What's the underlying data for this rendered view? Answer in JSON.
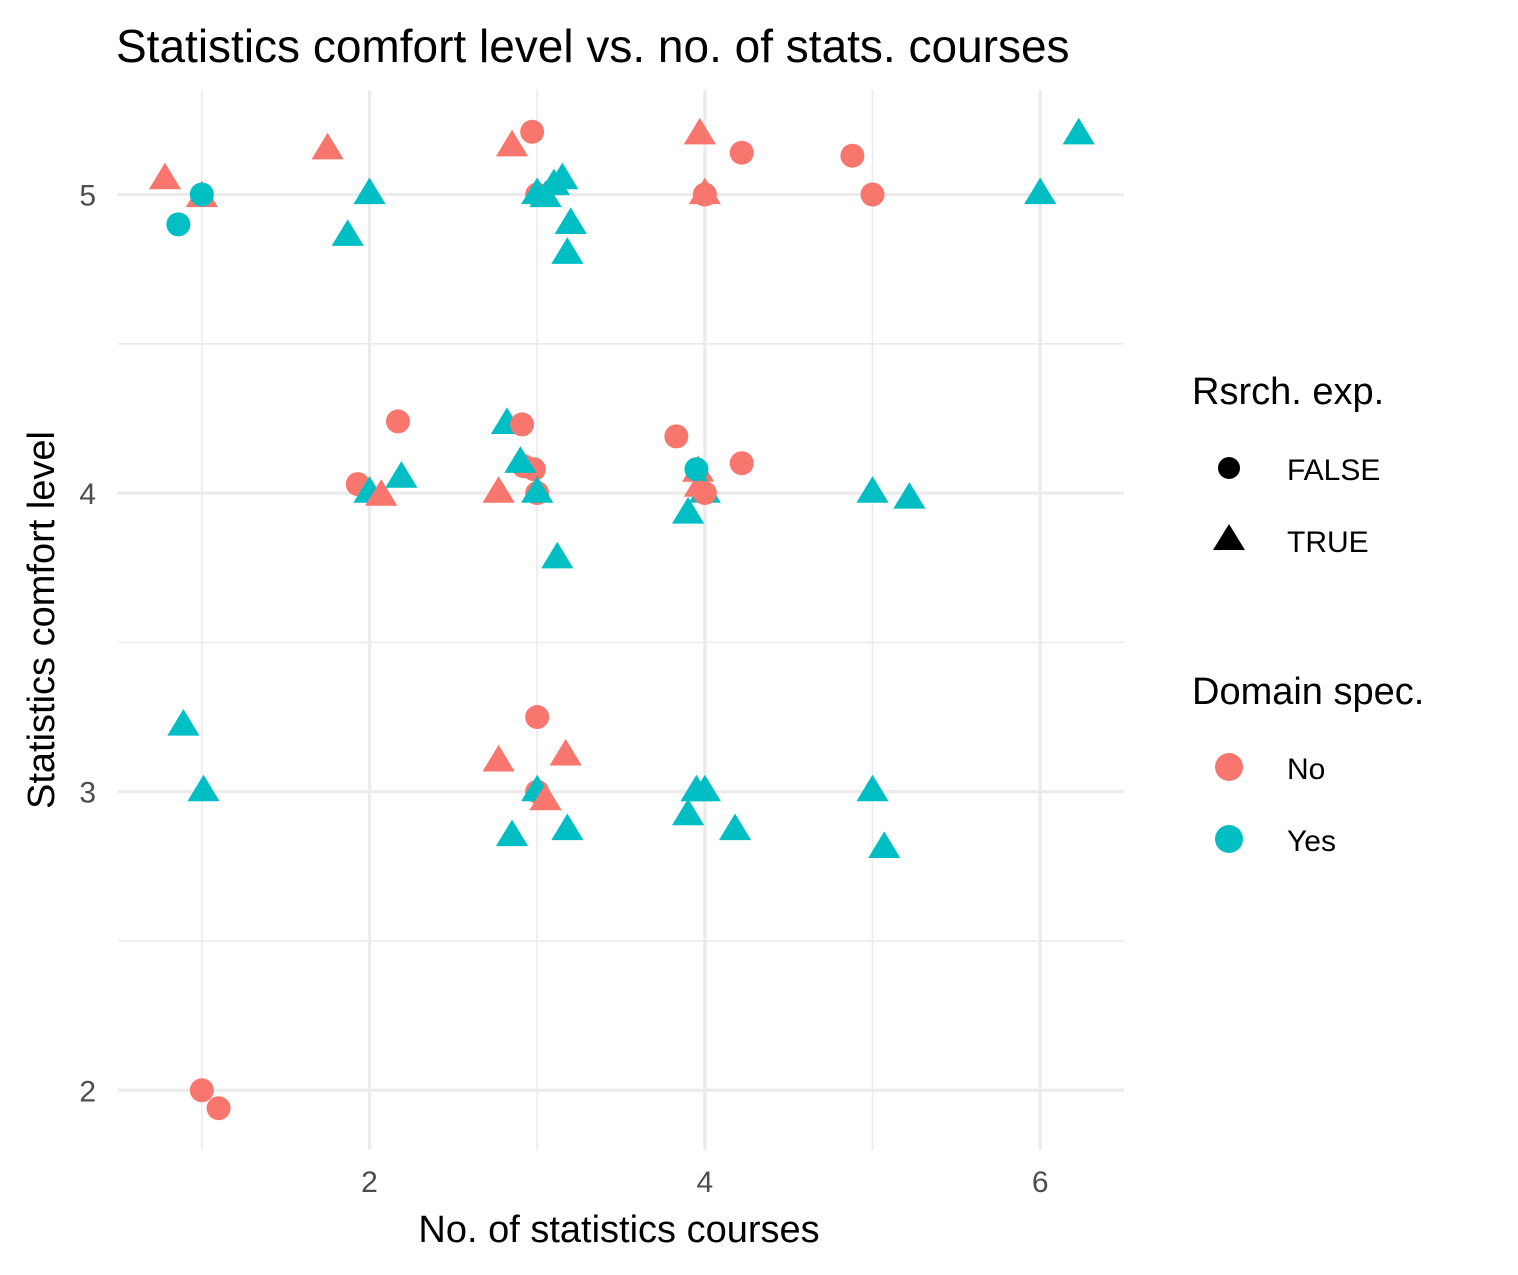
{
  "chart_data": {
    "type": "scatter",
    "title": "Statistics comfort level vs. no. of stats. courses",
    "xlabel": "No. of statistics courses",
    "ylabel": "Statistics comfort level",
    "xlim": [
      0.5,
      6.5
    ],
    "ylim": [
      1.8,
      5.35
    ],
    "x_ticks": [
      2,
      4,
      6
    ],
    "y_ticks": [
      2,
      3,
      4,
      5
    ],
    "x_tick_labels": [
      "2",
      "4",
      "6"
    ],
    "y_tick_labels": [
      "2",
      "3",
      "4",
      "5"
    ],
    "grid": true,
    "legend_position": "right",
    "colors": {
      "No": "#f8766d",
      "Yes": "#00bfc4"
    },
    "legends": [
      {
        "title": "Rsrch. exp.",
        "kind": "shape",
        "entries": [
          {
            "label": "FALSE",
            "shape": "circle"
          },
          {
            "label": "TRUE",
            "shape": "triangle"
          }
        ]
      },
      {
        "title": "Domain spec.",
        "kind": "color",
        "entries": [
          {
            "label": "No",
            "color": "#f8766d"
          },
          {
            "label": "Yes",
            "color": "#00bfc4"
          }
        ]
      }
    ],
    "points": [
      {
        "x": 0.78,
        "y": 5.06,
        "domain": "No",
        "research": "TRUE"
      },
      {
        "x": 1.0,
        "y": 5.0,
        "domain": "No",
        "research": "TRUE"
      },
      {
        "x": 1.0,
        "y": 5.0,
        "domain": "Yes",
        "research": "FALSE"
      },
      {
        "x": 0.86,
        "y": 4.9,
        "domain": "Yes",
        "research": "FALSE"
      },
      {
        "x": 1.75,
        "y": 5.16,
        "domain": "No",
        "research": "TRUE"
      },
      {
        "x": 2.0,
        "y": 5.01,
        "domain": "Yes",
        "research": "TRUE"
      },
      {
        "x": 1.87,
        "y": 4.87,
        "domain": "Yes",
        "research": "TRUE"
      },
      {
        "x": 2.85,
        "y": 5.17,
        "domain": "No",
        "research": "TRUE"
      },
      {
        "x": 2.97,
        "y": 5.21,
        "domain": "No",
        "research": "FALSE"
      },
      {
        "x": 3.0,
        "y": 5.0,
        "domain": "No",
        "research": "FALSE"
      },
      {
        "x": 3.0,
        "y": 5.01,
        "domain": "Yes",
        "research": "TRUE"
      },
      {
        "x": 3.05,
        "y": 5.0,
        "domain": "Yes",
        "research": "TRUE"
      },
      {
        "x": 3.1,
        "y": 5.04,
        "domain": "Yes",
        "research": "TRUE"
      },
      {
        "x": 3.15,
        "y": 5.06,
        "domain": "Yes",
        "research": "TRUE"
      },
      {
        "x": 3.2,
        "y": 4.91,
        "domain": "Yes",
        "research": "TRUE"
      },
      {
        "x": 3.18,
        "y": 4.81,
        "domain": "Yes",
        "research": "TRUE"
      },
      {
        "x": 3.97,
        "y": 5.21,
        "domain": "No",
        "research": "TRUE"
      },
      {
        "x": 4.22,
        "y": 5.14,
        "domain": "No",
        "research": "FALSE"
      },
      {
        "x": 4.0,
        "y": 5.01,
        "domain": "No",
        "research": "TRUE"
      },
      {
        "x": 4.0,
        "y": 5.0,
        "domain": "No",
        "research": "FALSE"
      },
      {
        "x": 4.88,
        "y": 5.13,
        "domain": "No",
        "research": "FALSE"
      },
      {
        "x": 5.0,
        "y": 5.0,
        "domain": "No",
        "research": "FALSE"
      },
      {
        "x": 6.0,
        "y": 5.01,
        "domain": "Yes",
        "research": "TRUE"
      },
      {
        "x": 6.23,
        "y": 5.21,
        "domain": "Yes",
        "research": "TRUE"
      },
      {
        "x": 2.17,
        "y": 4.24,
        "domain": "No",
        "research": "FALSE"
      },
      {
        "x": 1.93,
        "y": 4.03,
        "domain": "No",
        "research": "FALSE"
      },
      {
        "x": 2.0,
        "y": 4.01,
        "domain": "Yes",
        "research": "TRUE"
      },
      {
        "x": 2.07,
        "y": 4.0,
        "domain": "No",
        "research": "TRUE"
      },
      {
        "x": 2.19,
        "y": 4.06,
        "domain": "Yes",
        "research": "TRUE"
      },
      {
        "x": 2.82,
        "y": 4.24,
        "domain": "Yes",
        "research": "TRUE"
      },
      {
        "x": 2.91,
        "y": 4.23,
        "domain": "No",
        "research": "FALSE"
      },
      {
        "x": 2.92,
        "y": 4.09,
        "domain": "No",
        "research": "FALSE"
      },
      {
        "x": 2.98,
        "y": 4.08,
        "domain": "No",
        "research": "FALSE"
      },
      {
        "x": 2.9,
        "y": 4.11,
        "domain": "Yes",
        "research": "TRUE"
      },
      {
        "x": 2.77,
        "y": 4.01,
        "domain": "No",
        "research": "TRUE"
      },
      {
        "x": 3.0,
        "y": 4.0,
        "domain": "No",
        "research": "FALSE"
      },
      {
        "x": 3.0,
        "y": 4.01,
        "domain": "Yes",
        "research": "TRUE"
      },
      {
        "x": 3.12,
        "y": 3.79,
        "domain": "Yes",
        "research": "TRUE"
      },
      {
        "x": 3.83,
        "y": 4.19,
        "domain": "No",
        "research": "FALSE"
      },
      {
        "x": 3.96,
        "y": 4.08,
        "domain": "No",
        "research": "TRUE"
      },
      {
        "x": 3.97,
        "y": 4.03,
        "domain": "No",
        "research": "TRUE"
      },
      {
        "x": 4.0,
        "y": 4.01,
        "domain": "Yes",
        "research": "TRUE"
      },
      {
        "x": 4.0,
        "y": 4.0,
        "domain": "No",
        "research": "FALSE"
      },
      {
        "x": 3.95,
        "y": 4.08,
        "domain": "Yes",
        "research": "FALSE"
      },
      {
        "x": 4.22,
        "y": 4.1,
        "domain": "No",
        "research": "FALSE"
      },
      {
        "x": 3.9,
        "y": 3.94,
        "domain": "Yes",
        "research": "TRUE"
      },
      {
        "x": 5.0,
        "y": 4.01,
        "domain": "Yes",
        "research": "TRUE"
      },
      {
        "x": 5.22,
        "y": 3.99,
        "domain": "Yes",
        "research": "TRUE"
      },
      {
        "x": 0.89,
        "y": 3.23,
        "domain": "Yes",
        "research": "TRUE"
      },
      {
        "x": 1.01,
        "y": 3.01,
        "domain": "Yes",
        "research": "TRUE"
      },
      {
        "x": 3.0,
        "y": 3.25,
        "domain": "No",
        "research": "FALSE"
      },
      {
        "x": 2.77,
        "y": 3.11,
        "domain": "No",
        "research": "TRUE"
      },
      {
        "x": 3.17,
        "y": 3.13,
        "domain": "No",
        "research": "TRUE"
      },
      {
        "x": 3.0,
        "y": 3.0,
        "domain": "No",
        "research": "FALSE"
      },
      {
        "x": 3.0,
        "y": 3.01,
        "domain": "Yes",
        "research": "TRUE"
      },
      {
        "x": 3.05,
        "y": 2.98,
        "domain": "No",
        "research": "TRUE"
      },
      {
        "x": 2.85,
        "y": 2.86,
        "domain": "Yes",
        "research": "TRUE"
      },
      {
        "x": 3.18,
        "y": 2.88,
        "domain": "Yes",
        "research": "TRUE"
      },
      {
        "x": 3.95,
        "y": 3.01,
        "domain": "Yes",
        "research": "TRUE"
      },
      {
        "x": 4.0,
        "y": 3.01,
        "domain": "Yes",
        "research": "TRUE"
      },
      {
        "x": 3.9,
        "y": 2.93,
        "domain": "Yes",
        "research": "TRUE"
      },
      {
        "x": 4.18,
        "y": 2.88,
        "domain": "Yes",
        "research": "TRUE"
      },
      {
        "x": 5.0,
        "y": 3.01,
        "domain": "Yes",
        "research": "TRUE"
      },
      {
        "x": 5.07,
        "y": 2.82,
        "domain": "Yes",
        "research": "TRUE"
      },
      {
        "x": 1.0,
        "y": 2.0,
        "domain": "No",
        "research": "FALSE"
      },
      {
        "x": 1.1,
        "y": 1.94,
        "domain": "No",
        "research": "FALSE"
      }
    ]
  }
}
